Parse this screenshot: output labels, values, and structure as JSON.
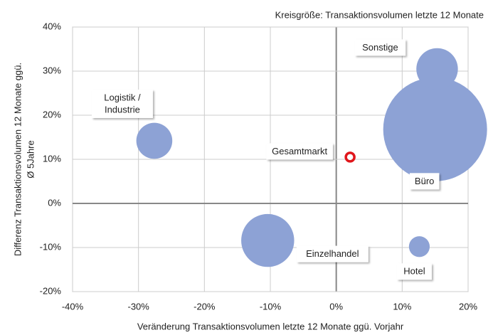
{
  "chart_data": {
    "type": "bubble",
    "note": "Kreisgröße: Transaktionsvolumen letzte 12 Monate",
    "x_label": "Veränderung Transaktionsvolumen letzte 12 Monate ggü. Vorjahr",
    "y_label": [
      "Differenz Transaktionsvolumen 12 Monate ggü.",
      "Ø 5Jahre"
    ],
    "color": "#8da2d5",
    "highlight_color": "#e0161b",
    "points": [
      {
        "label": [
          "Logistik /",
          "Industrie"
        ],
        "x": -27.6,
        "y": 14.2,
        "size": 12
      },
      {
        "label": [
          "Einzelhandel"
        ],
        "x": -10.4,
        "y": -8.4,
        "size": 26
      },
      {
        "label": [
          "Büro"
        ],
        "x": 15.0,
        "y": 16.8,
        "size": 100
      },
      {
        "label": [
          "Sonstige"
        ],
        "x": 15.3,
        "y": 30.5,
        "size": 16
      },
      {
        "label": [
          "Hotel"
        ],
        "x": 12.6,
        "y": -9.8,
        "size": 4
      }
    ],
    "highlight": {
      "label": [
        "Gesamtmarkt"
      ],
      "x": 2.1,
      "y": 10.5
    },
    "xlim": [
      -40,
      20
    ],
    "xticks": [
      {
        "value": -40,
        "label": "-40%"
      },
      {
        "value": -30,
        "label": "-30%"
      },
      {
        "value": -20,
        "label": "-20%"
      },
      {
        "value": -10,
        "label": "-10%"
      },
      {
        "value": 0,
        "label": "0%"
      },
      {
        "value": 10,
        "label": "10%"
      },
      {
        "value": 20,
        "label": "20%"
      }
    ],
    "ylim": [
      -20,
      40
    ],
    "yticks": [
      {
        "value": -20,
        "label": "-20%"
      },
      {
        "value": -10,
        "label": "-10%"
      },
      {
        "value": 0,
        "label": "0%"
      },
      {
        "value": 10,
        "label": "10%"
      },
      {
        "value": 20,
        "label": "20%"
      },
      {
        "value": 30,
        "label": "30%"
      },
      {
        "value": 40,
        "label": "40%"
      }
    ],
    "grid": true
  }
}
